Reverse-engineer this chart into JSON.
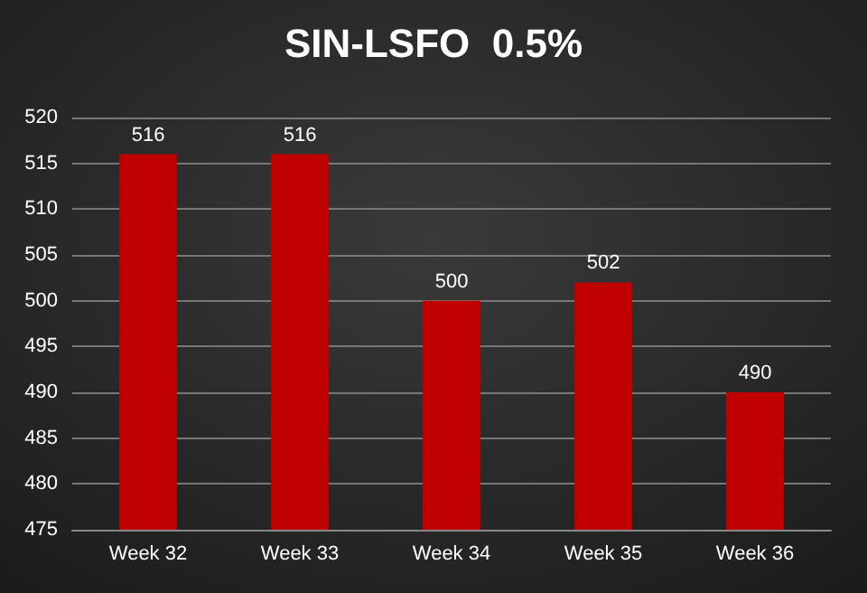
{
  "chart_data": {
    "type": "bar",
    "title": "SIN-LSFO  0.5%",
    "categories": [
      "Week 32",
      "Week 33",
      "Week 34",
      "Week 35",
      "Week 36"
    ],
    "values": [
      516,
      516,
      500,
      502,
      490
    ],
    "color": "#c00000",
    "ylim": [
      475,
      520
    ],
    "yticks": [
      475,
      480,
      485,
      490,
      495,
      500,
      505,
      510,
      515,
      520
    ],
    "grid": true,
    "data_labels": true
  }
}
